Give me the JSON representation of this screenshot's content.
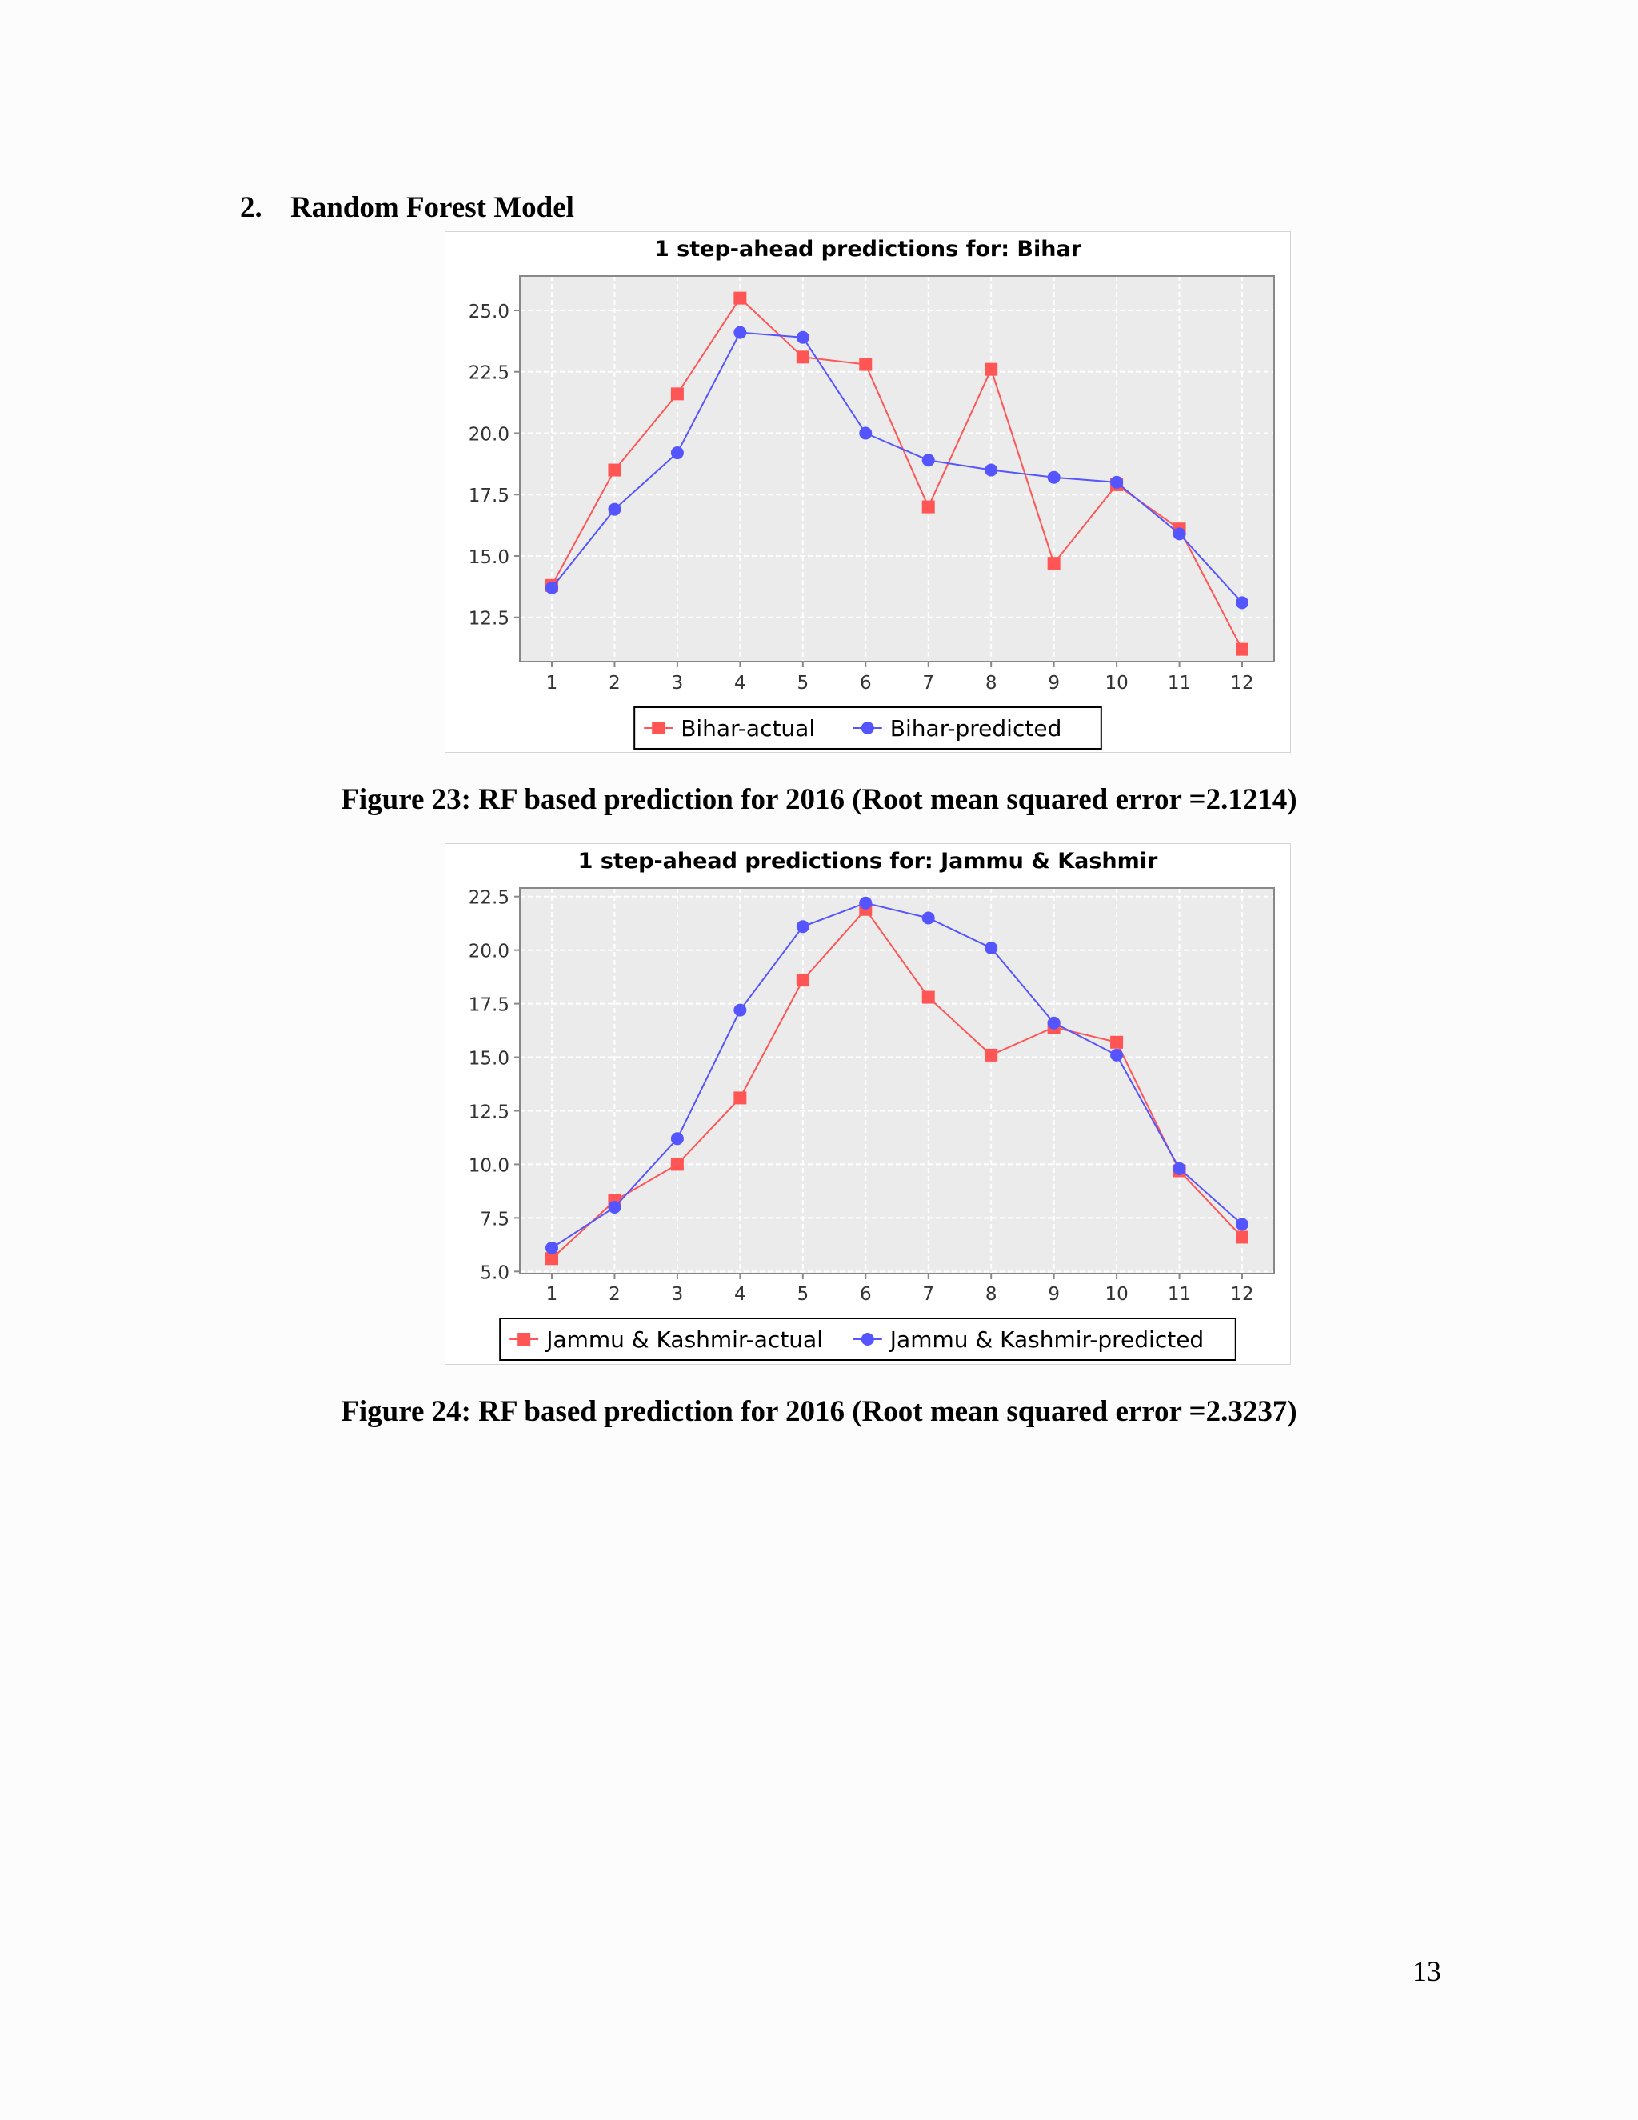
{
  "section": {
    "number": "2.",
    "title": "Random Forest Model"
  },
  "chart_data": [
    {
      "type": "line",
      "title": "1 step-ahead predictions for: Bihar",
      "xlabel": "",
      "ylabel": "",
      "categories": [
        "1",
        "2",
        "3",
        "4",
        "5",
        "6",
        "7",
        "8",
        "9",
        "10",
        "11",
        "12"
      ],
      "ylim": [
        10.7,
        26.4
      ],
      "yticks": [
        "12.5",
        "15.0",
        "17.5",
        "20.0",
        "22.5",
        "25.0"
      ],
      "grid": true,
      "legend_position": "bottom",
      "series": [
        {
          "name": "Bihar-actual",
          "color": "#ff5555",
          "marker": "square",
          "values": [
            13.8,
            18.5,
            21.6,
            25.5,
            23.1,
            22.8,
            17.0,
            22.6,
            14.7,
            17.9,
            16.1,
            11.2
          ]
        },
        {
          "name": "Bihar-predicted",
          "color": "#5555ff",
          "marker": "circle",
          "values": [
            13.7,
            16.9,
            19.2,
            24.1,
            23.9,
            20.0,
            18.9,
            18.5,
            18.2,
            18.0,
            15.9,
            13.1
          ]
        }
      ],
      "caption": "Figure 23: RF based prediction for 2016 (Root mean squared error =2.1214)"
    },
    {
      "type": "line",
      "title": "1 step-ahead predictions for: Jammu & Kashmir",
      "xlabel": "",
      "ylabel": "",
      "categories": [
        "1",
        "2",
        "3",
        "4",
        "5",
        "6",
        "7",
        "8",
        "9",
        "10",
        "11",
        "12"
      ],
      "ylim": [
        4.9,
        22.9
      ],
      "yticks": [
        "5.0",
        "7.5",
        "10.0",
        "12.5",
        "15.0",
        "17.5",
        "20.0",
        "22.5"
      ],
      "grid": true,
      "legend_position": "bottom",
      "series": [
        {
          "name": "Jammu & Kashmir-actual",
          "color": "#ff5555",
          "marker": "square",
          "values": [
            5.6,
            8.3,
            10.0,
            13.1,
            18.6,
            21.9,
            17.8,
            15.1,
            16.4,
            15.7,
            9.7,
            6.6
          ]
        },
        {
          "name": "Jammu & Kashmir-predicted",
          "color": "#5555ff",
          "marker": "circle",
          "values": [
            6.1,
            8.0,
            11.2,
            17.2,
            21.1,
            22.2,
            21.5,
            20.1,
            16.6,
            15.1,
            9.8,
            7.2
          ]
        }
      ],
      "caption": "Figure 24: RF based prediction for 2016 (Root mean squared error =2.3237)"
    }
  ],
  "page_number": "13"
}
